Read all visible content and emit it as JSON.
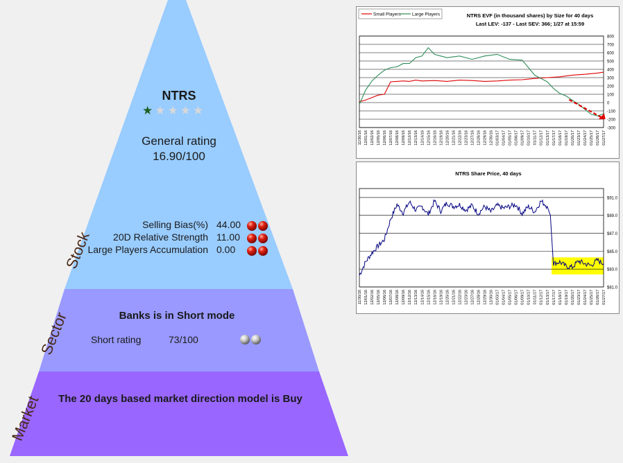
{
  "stock": {
    "ticker": "NTRS",
    "stars_filled": 1,
    "stars_total": 5,
    "general_rating_label": "General rating",
    "general_rating_value": "16.90/100",
    "metrics": [
      {
        "label": "Selling Bias(%)",
        "value": "44.00",
        "balls": [
          "red",
          "red"
        ]
      },
      {
        "label": "20D Relative Strength",
        "value": "11.00",
        "balls": [
          "red",
          "red"
        ]
      },
      {
        "label": "Large Players Accumulation",
        "value": "0.00",
        "balls": [
          "red",
          "red"
        ]
      }
    ]
  },
  "sector": {
    "headline": "Banks is in Short mode",
    "rating_label": "Short rating",
    "rating_value": "73/100",
    "balls": [
      "grey",
      "grey"
    ]
  },
  "market": {
    "headline": "The 20 days based market direction model is Buy"
  },
  "side_labels": {
    "stock": "Stock",
    "sector": "Sector",
    "market": "Market"
  },
  "colors": {
    "stock": "#99ccff",
    "sector": "#9999ff",
    "market": "#9966ff",
    "small_players": "#e00000",
    "large_players": "#2e8b57",
    "price": "#000080",
    "highlight": "#ffff00"
  },
  "chart_data": [
    {
      "type": "line",
      "title": "NTRS EVF (in thousand shares) by Size for 40 days",
      "subtitle": "Last LEV: -137 - Last SEV: 366; 1/27 at 15:59",
      "legend": [
        "Small Players",
        "Large Players"
      ],
      "legend_position": "top-left",
      "ylim": [
        -300,
        800
      ],
      "y_ticks": [
        800,
        700,
        600,
        500,
        400,
        300,
        200,
        100,
        0,
        -100,
        -200,
        -300
      ],
      "x_ticks": [
        "11/30/16",
        "12/01/16",
        "12/02/16",
        "12/05/16",
        "12/06/16",
        "12/07/16",
        "12/08/16",
        "12/09/16",
        "12/12/16",
        "12/13/16",
        "12/14/16",
        "12/15/16",
        "12/16/16",
        "12/19/16",
        "12/20/16",
        "12/21/16",
        "12/22/16",
        "12/23/16",
        "12/27/16",
        "12/28/16",
        "12/29/16",
        "12/30/16",
        "01/03/17",
        "01/04/17",
        "01/05/17",
        "01/06/17",
        "01/09/17",
        "01/10/17",
        "01/11/17",
        "01/12/17",
        "01/13/17",
        "01/17/17",
        "01/18/17",
        "01/19/17",
        "01/20/17",
        "01/23/17",
        "01/24/17",
        "01/25/17",
        "01/26/17",
        "01/27/17"
      ],
      "series": [
        {
          "name": "Small Players",
          "x": [
            0,
            1,
            2,
            3,
            4,
            5,
            6,
            7,
            8,
            9,
            10,
            12,
            14,
            16,
            18,
            20,
            22,
            24,
            26,
            28,
            30,
            32,
            34,
            36,
            38,
            39
          ],
          "values": [
            10,
            30,
            60,
            90,
            100,
            250,
            255,
            260,
            255,
            270,
            260,
            265,
            255,
            270,
            265,
            255,
            260,
            270,
            275,
            290,
            300,
            310,
            330,
            340,
            355,
            366
          ]
        },
        {
          "name": "Large Players",
          "x": [
            0,
            1,
            2,
            3,
            4,
            5,
            6,
            7,
            8,
            9,
            10,
            11,
            12,
            13,
            14,
            16,
            18,
            20,
            22,
            24,
            26,
            28,
            29,
            30,
            31,
            32,
            33,
            34,
            35,
            36,
            37,
            38,
            39
          ],
          "values": [
            -20,
            150,
            260,
            330,
            390,
            420,
            430,
            470,
            470,
            540,
            560,
            660,
            580,
            560,
            540,
            560,
            520,
            560,
            580,
            520,
            510,
            330,
            290,
            250,
            170,
            110,
            80,
            30,
            -20,
            -80,
            -140,
            -160,
            -137
          ]
        }
      ]
    },
    {
      "type": "line",
      "title": "NTRS Share Price, 40 days",
      "ylim": [
        81,
        92
      ],
      "y_ticks": [
        "$91.0",
        "$89.0",
        "$87.0",
        "$85.0",
        "$83.0",
        "$81.0"
      ],
      "y_tick_values": [
        91,
        89,
        87,
        85,
        83,
        81
      ],
      "x_ticks": [
        "11/30/16",
        "12/01/16",
        "12/02/16",
        "12/05/16",
        "12/06/16",
        "12/07/16",
        "12/08/16",
        "12/09/16",
        "12/12/16",
        "12/13/16",
        "12/14/16",
        "12/15/16",
        "12/16/16",
        "12/19/16",
        "12/20/16",
        "12/21/16",
        "12/22/16",
        "12/23/16",
        "12/27/16",
        "12/28/16",
        "12/29/16",
        "12/30/16",
        "01/03/17",
        "01/04/17",
        "01/05/17",
        "01/06/17",
        "01/09/17",
        "01/10/17",
        "01/11/17",
        "01/12/17",
        "01/13/17",
        "01/17/17",
        "01/18/17",
        "01/19/17",
        "01/20/17",
        "01/23/17",
        "01/24/17",
        "01/25/17",
        "01/26/17",
        "01/27/17"
      ],
      "series": [
        {
          "name": "",
          "x": [
            0,
            1,
            2,
            3,
            4,
            5,
            6,
            7,
            8,
            9,
            10,
            11,
            12,
            13,
            14,
            15,
            16,
            17,
            18,
            19,
            20,
            21,
            22,
            23,
            24,
            25,
            26,
            27,
            28,
            29,
            30,
            30.5,
            31,
            32,
            33,
            34,
            35,
            36,
            37,
            38,
            39
          ],
          "values": [
            82.3,
            83.8,
            84.8,
            85.6,
            86.3,
            88.6,
            90.2,
            89.3,
            90.5,
            89.6,
            90.0,
            89.1,
            90.6,
            89.5,
            90.4,
            90.0,
            90.2,
            89.6,
            90.1,
            89.2,
            90.0,
            89.4,
            90.1,
            89.8,
            90.0,
            90.2,
            89.2,
            90.0,
            89.4,
            90.6,
            90.0,
            89.0,
            83.6,
            83.8,
            83.3,
            83.2,
            83.9,
            83.6,
            83.4,
            84.0,
            83.6
          ]
        }
      ],
      "highlight_range": [
        82.4,
        84.3
      ]
    }
  ]
}
